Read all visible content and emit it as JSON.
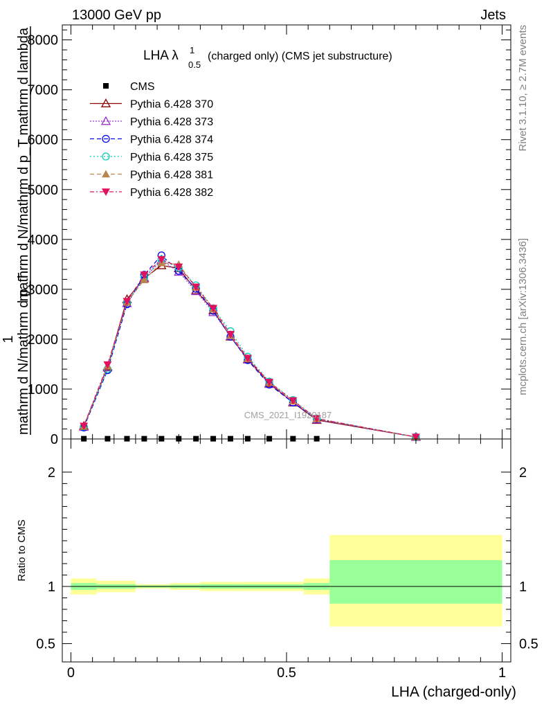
{
  "header": {
    "left": "13000 GeV pp",
    "right": "Jets"
  },
  "side": {
    "rivet": "Rivet 3.1.10, ≥ 2.7M events",
    "mcplots": "mcplots.cern.ch [arXiv:1306.3436]"
  },
  "plot": {
    "title_main": "LHA λ",
    "title_sup": "1",
    "title_sub": "0.5",
    "title_rest": "(charged only) (CMS jet substructure)",
    "watermark": "CMS_2021_I1920187",
    "ylabel_top": "1",
    "ylabel_num": "mathrm d N/mathrm d p_T mathrm d lambda",
    "ylabel_den": "mathrm d N/mathrm d p_T",
    "ratio_ylabel": "Ratio to CMS",
    "xlabel": "LHA (charged-only)"
  },
  "colors": {
    "cms": "#000000",
    "p370": "#8b0000",
    "p373": "#9932cc",
    "p374": "#0000ee",
    "p375": "#00cdb4",
    "p381": "#b8864b",
    "p382": "#e0115f",
    "band_outer": "#ffff99",
    "band_inner": "#99ff99"
  },
  "chart_data": {
    "type": "line",
    "x": [
      0.03,
      0.085,
      0.13,
      0.17,
      0.21,
      0.25,
      0.29,
      0.33,
      0.37,
      0.41,
      0.46,
      0.515,
      0.57,
      0.8
    ],
    "xlim": [
      -0.02,
      1.02
    ],
    "ylim": [
      0,
      8300
    ],
    "yticks": [
      0,
      1000,
      2000,
      3000,
      4000,
      5000,
      6000,
      7000,
      8000
    ],
    "ytick_labels": [
      "0",
      "1000",
      "2000",
      "3000",
      "4000",
      "5000",
      "6000",
      "7000",
      "8000"
    ],
    "xticks": [
      0,
      0.5,
      1
    ],
    "xtick_labels": [
      "0",
      "0.5",
      "1"
    ],
    "legend_position": "top-left",
    "series": [
      {
        "name": "CMS",
        "key": "cms",
        "marker": "square",
        "dash": "",
        "values": [
          5,
          5,
          5,
          5,
          5,
          5,
          5,
          5,
          5,
          5,
          5,
          5,
          5,
          null
        ]
      },
      {
        "name": "Pythia 6.428 370",
        "key": "p370",
        "marker": "triangle-open",
        "dash": "",
        "values": [
          260,
          1450,
          2800,
          3220,
          3480,
          3420,
          2980,
          2580,
          2050,
          1600,
          1120,
          730,
          380,
          40
        ]
      },
      {
        "name": "Pythia 6.428 373",
        "key": "p373",
        "marker": "triangle-open",
        "dash": "2,2",
        "values": [
          240,
          1430,
          2720,
          3230,
          3580,
          3350,
          2960,
          2540,
          2060,
          1590,
          1100,
          740,
          390,
          40
        ]
      },
      {
        "name": "Pythia 6.428 374",
        "key": "p374",
        "marker": "circle-open",
        "dash": "6,4",
        "values": [
          230,
          1380,
          2700,
          3290,
          3680,
          3370,
          3010,
          2570,
          2050,
          1580,
          1090,
          730,
          400,
          40
        ]
      },
      {
        "name": "Pythia 6.428 375",
        "key": "p375",
        "marker": "circle-open",
        "dash": "2,3",
        "values": [
          250,
          1400,
          2740,
          3240,
          3600,
          3430,
          3080,
          2620,
          2160,
          1650,
          1150,
          780,
          410,
          40
        ]
      },
      {
        "name": "Pythia 6.428 381",
        "key": "p381",
        "marker": "triangle-filled",
        "dash": "6,4",
        "values": [
          250,
          1460,
          2740,
          3190,
          3530,
          3500,
          3040,
          2600,
          2070,
          1610,
          1130,
          760,
          400,
          40
        ]
      },
      {
        "name": "Pythia 6.428 382",
        "key": "p382",
        "marker": "triangle-down-filled",
        "dash": "6,3,2,3",
        "values": [
          260,
          1490,
          2760,
          3290,
          3600,
          3450,
          3050,
          2620,
          2100,
          1620,
          1140,
          770,
          410,
          40
        ]
      }
    ],
    "ratio": {
      "ylim": [
        0.34,
        2.29
      ],
      "yticks": [
        0.5,
        1,
        2
      ],
      "ytick_labels": [
        "0.5",
        "1",
        "2"
      ],
      "bins": [
        {
          "x0": 0.0,
          "x1": 0.06,
          "outer": [
            0.93,
            1.07
          ],
          "inner": [
            0.97,
            1.03
          ]
        },
        {
          "x0": 0.06,
          "x1": 0.15,
          "outer": [
            0.95,
            1.05
          ],
          "inner": [
            0.98,
            1.02
          ]
        },
        {
          "x0": 0.15,
          "x1": 0.23,
          "outer": [
            0.98,
            1.02
          ],
          "inner": [
            0.99,
            1.01
          ]
        },
        {
          "x0": 0.23,
          "x1": 0.3,
          "outer": [
            0.97,
            1.03
          ],
          "inner": [
            0.985,
            1.015
          ]
        },
        {
          "x0": 0.3,
          "x1": 0.4,
          "outer": [
            0.96,
            1.04
          ],
          "inner": [
            0.98,
            1.02
          ]
        },
        {
          "x0": 0.4,
          "x1": 0.54,
          "outer": [
            0.96,
            1.04
          ],
          "inner": [
            0.98,
            1.02
          ]
        },
        {
          "x0": 0.54,
          "x1": 0.6,
          "outer": [
            0.93,
            1.07
          ],
          "inner": [
            0.97,
            1.03
          ]
        },
        {
          "x0": 0.6,
          "x1": 1.0,
          "outer": [
            0.65,
            1.45
          ],
          "inner": [
            0.85,
            1.23
          ]
        }
      ]
    }
  }
}
